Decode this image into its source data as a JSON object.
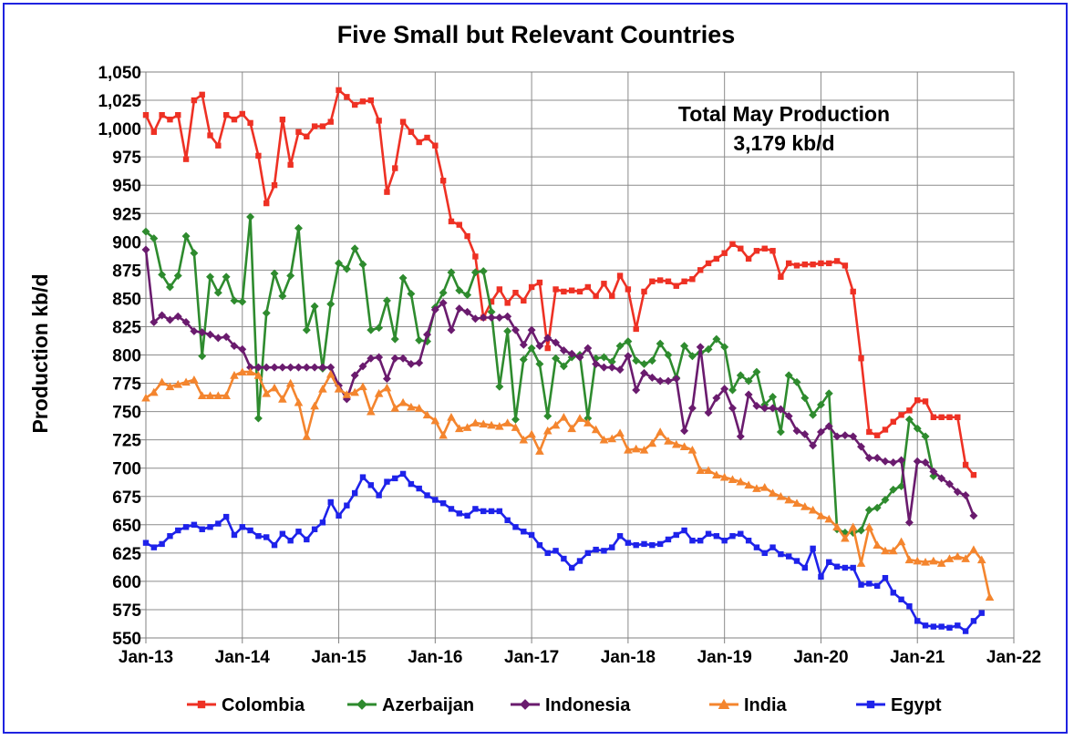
{
  "chart_data": {
    "type": "line",
    "title": "Five Small but Relevant Countries",
    "xlabel": "",
    "ylabel": "Production kb/d",
    "ylim": [
      550,
      1050
    ],
    "y_ticks": [
      550,
      575,
      600,
      625,
      650,
      675,
      700,
      725,
      750,
      775,
      800,
      825,
      850,
      875,
      900,
      925,
      950,
      975,
      1000,
      1025,
      1050
    ],
    "y_tick_labels": [
      "550",
      "575",
      "600",
      "625",
      "650",
      "675",
      "700",
      "725",
      "750",
      "775",
      "800",
      "825",
      "850",
      "875",
      "900",
      "925",
      "950",
      "975",
      "1,000",
      "1,025",
      "1,050"
    ],
    "x_tick_labels": [
      "Jan-13",
      "Jan-14",
      "Jan-15",
      "Jan-16",
      "Jan-17",
      "Jan-18",
      "Jan-19",
      "Jan-20",
      "Jan-21",
      "Jan-22"
    ],
    "x_start": "Jan-13",
    "x_end": "Jan-22",
    "grid": true,
    "legend_position": "bottom",
    "annotation": {
      "line1": "Total May Production",
      "line2": "3,179 kb/d"
    },
    "series": [
      {
        "name": "Colombia",
        "color": "#ee3124",
        "marker": "square",
        "start": "Jan-13",
        "values": [
          1012,
          997,
          1012,
          1008,
          1012,
          973,
          1025,
          1030,
          994,
          985,
          1012,
          1008,
          1013,
          1005,
          976,
          934,
          950,
          1008,
          968,
          997,
          993,
          1002,
          1002,
          1006,
          1034,
          1028,
          1021,
          1024,
          1025,
          1007,
          944,
          965,
          1006,
          997,
          988,
          992,
          985,
          954,
          918,
          915,
          905,
          887,
          833,
          847,
          858,
          846,
          855,
          848,
          860,
          864,
          806,
          858,
          856,
          857,
          856,
          860,
          852,
          863,
          852,
          870,
          858,
          823,
          856,
          865,
          866,
          865,
          861,
          865,
          867,
          875,
          881,
          885,
          890,
          898,
          894,
          885,
          892,
          894,
          892,
          869,
          881,
          879,
          880,
          880,
          881,
          881,
          883,
          879,
          856,
          797,
          732,
          729,
          734,
          741,
          747,
          751,
          760,
          759,
          745,
          745,
          745,
          745,
          703,
          694
        ]
      },
      {
        "name": "Azerbaijan",
        "color": "#2e8b2e",
        "marker": "diamond",
        "start": "Jan-13",
        "values": [
          909,
          903,
          871,
          860,
          870,
          905,
          890,
          799,
          869,
          855,
          869,
          848,
          847,
          922,
          744,
          837,
          872,
          852,
          870,
          912,
          822,
          843,
          788,
          845,
          881,
          876,
          894,
          880,
          822,
          824,
          848,
          814,
          868,
          854,
          813,
          812,
          842,
          855,
          873,
          857,
          853,
          873,
          874,
          838,
          772,
          821,
          743,
          796,
          806,
          792,
          746,
          797,
          790,
          798,
          800,
          744,
          797,
          798,
          794,
          808,
          812,
          795,
          792,
          795,
          810,
          800,
          780,
          808,
          799,
          802,
          805,
          814,
          807,
          769,
          782,
          777,
          785,
          756,
          763,
          732,
          782,
          776,
          762,
          747,
          756,
          766,
          646,
          643,
          643,
          645,
          663,
          665,
          672,
          681,
          684,
          743,
          735,
          728,
          693
        ]
      },
      {
        "name": "Indonesia",
        "color": "#6a1b6e",
        "marker": "diamond",
        "start": "Jan-13",
        "values": [
          893,
          829,
          835,
          831,
          834,
          829,
          821,
          820,
          818,
          815,
          816,
          808,
          805,
          789,
          789,
          789,
          789,
          789,
          789,
          789,
          789,
          789,
          789,
          789,
          773,
          761,
          782,
          790,
          797,
          798,
          779,
          797,
          797,
          792,
          793,
          818,
          840,
          846,
          822,
          841,
          838,
          832,
          833,
          833,
          833,
          834,
          822,
          809,
          822,
          808,
          815,
          811,
          804,
          801,
          798,
          806,
          792,
          789,
          789,
          787,
          799,
          769,
          784,
          780,
          777,
          777,
          779,
          733,
          753,
          807,
          749,
          762,
          770,
          753,
          728,
          765,
          755,
          753,
          753,
          752,
          746,
          733,
          730,
          720,
          732,
          737,
          728,
          729,
          728,
          719,
          709,
          709,
          706,
          705,
          707,
          652,
          706,
          705,
          697,
          691,
          686,
          679,
          676,
          658
        ]
      },
      {
        "name": "India",
        "color": "#f4852e",
        "marker": "triangle",
        "start": "Jan-13",
        "values": [
          762,
          767,
          776,
          772,
          774,
          776,
          778,
          764,
          764,
          764,
          764,
          782,
          785,
          785,
          782,
          766,
          771,
          761,
          775,
          758,
          728,
          755,
          770,
          783,
          770,
          765,
          767,
          772,
          750,
          766,
          771,
          753,
          758,
          754,
          753,
          747,
          742,
          729,
          745,
          735,
          736,
          740,
          739,
          738,
          737,
          740,
          736,
          725,
          730,
          715,
          733,
          738,
          745,
          735,
          744,
          740,
          734,
          725,
          726,
          731,
          716,
          717,
          716,
          722,
          732,
          724,
          721,
          719,
          716,
          698,
          698,
          694,
          692,
          690,
          688,
          685,
          682,
          683,
          678,
          675,
          672,
          669,
          666,
          663,
          658,
          655,
          648,
          638,
          648,
          616,
          648,
          632,
          627,
          627,
          635,
          619,
          618,
          617,
          618,
          616,
          620,
          622,
          620,
          628,
          619,
          586
        ]
      },
      {
        "name": "Egypt",
        "color": "#1e22ea",
        "marker": "square",
        "start": "Jan-13",
        "values": [
          634,
          630,
          633,
          640,
          645,
          648,
          650,
          646,
          648,
          651,
          657,
          641,
          648,
          645,
          640,
          639,
          632,
          642,
          636,
          644,
          637,
          646,
          652,
          670,
          658,
          667,
          678,
          692,
          685,
          676,
          688,
          691,
          695,
          686,
          682,
          676,
          672,
          669,
          664,
          660,
          658,
          664,
          662,
          662,
          662,
          654,
          648,
          644,
          641,
          632,
          625,
          627,
          620,
          612,
          618,
          625,
          628,
          627,
          630,
          640,
          634,
          632,
          633,
          632,
          633,
          637,
          641,
          645,
          636,
          636,
          642,
          640,
          636,
          640,
          642,
          636,
          630,
          625,
          630,
          624,
          622,
          618,
          612,
          629,
          604,
          617,
          613,
          612,
          612,
          597,
          598,
          596,
          603,
          590,
          584,
          578,
          565,
          561,
          560,
          560,
          559,
          561,
          556,
          565,
          572
        ]
      }
    ]
  }
}
